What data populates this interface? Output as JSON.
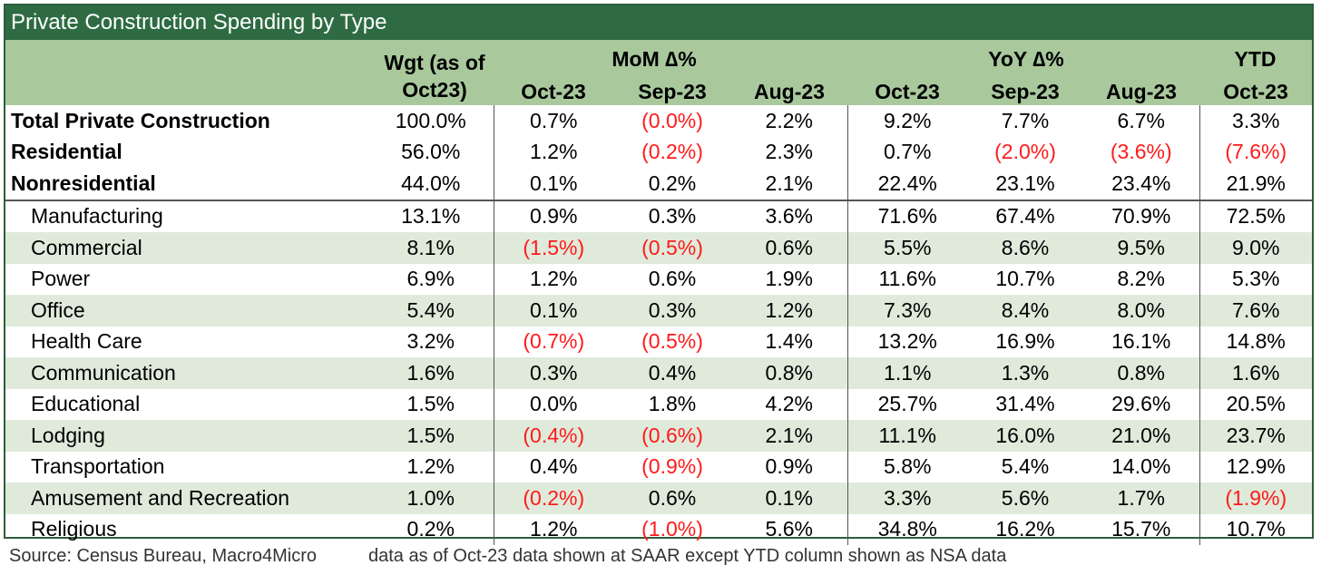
{
  "title": "Private Construction Spending by Type",
  "headers": {
    "wgt_line1": "Wgt (as of",
    "wgt_line2": "Oct23)",
    "mom_group": "MoM ∆%",
    "yoy_group": "YoY ∆%",
    "ytd_group": "YTD",
    "cols": [
      "Oct-23",
      "Sep-23",
      "Aug-23",
      "Oct-23",
      "Sep-23",
      "Aug-23",
      "Oct-23"
    ]
  },
  "rows": [
    {
      "label": "Total Private Construction",
      "cells": [
        "100.0%",
        "0.7%",
        "(0.0%)",
        "2.2%",
        "9.2%",
        "7.7%",
        "6.7%",
        "3.3%"
      ]
    },
    {
      "label": "Residential",
      "cells": [
        "56.0%",
        "1.2%",
        "(0.2%)",
        "2.3%",
        "0.7%",
        "(2.0%)",
        "(3.6%)",
        "(7.6%)"
      ]
    },
    {
      "label": "Nonresidential",
      "cells": [
        "44.0%",
        "0.1%",
        "0.2%",
        "2.1%",
        "22.4%",
        "23.1%",
        "23.4%",
        "21.9%"
      ]
    },
    {
      "label": "Manufacturing",
      "cells": [
        "13.1%",
        "0.9%",
        "0.3%",
        "3.6%",
        "71.6%",
        "67.4%",
        "70.9%",
        "72.5%"
      ]
    },
    {
      "label": "Commercial",
      "cells": [
        "8.1%",
        "(1.5%)",
        "(0.5%)",
        "0.6%",
        "5.5%",
        "8.6%",
        "9.5%",
        "9.0%"
      ]
    },
    {
      "label": "Power",
      "cells": [
        "6.9%",
        "1.2%",
        "0.6%",
        "1.9%",
        "11.6%",
        "10.7%",
        "8.2%",
        "5.3%"
      ]
    },
    {
      "label": "Office",
      "cells": [
        "5.4%",
        "0.1%",
        "0.3%",
        "1.2%",
        "7.3%",
        "8.4%",
        "8.0%",
        "7.6%"
      ]
    },
    {
      "label": "Health Care",
      "cells": [
        "3.2%",
        "(0.7%)",
        "(0.5%)",
        "1.4%",
        "13.2%",
        "16.9%",
        "16.1%",
        "14.8%"
      ]
    },
    {
      "label": "Communication",
      "cells": [
        "1.6%",
        "0.3%",
        "0.4%",
        "0.8%",
        "1.1%",
        "1.3%",
        "0.8%",
        "1.6%"
      ]
    },
    {
      "label": "Educational",
      "cells": [
        "1.5%",
        "0.0%",
        "1.8%",
        "4.2%",
        "25.7%",
        "31.4%",
        "29.6%",
        "20.5%"
      ]
    },
    {
      "label": "Lodging",
      "cells": [
        "1.5%",
        "(0.4%)",
        "(0.6%)",
        "2.1%",
        "11.1%",
        "16.0%",
        "21.0%",
        "23.7%"
      ]
    },
    {
      "label": "Transportation",
      "cells": [
        "1.2%",
        "0.4%",
        "(0.9%)",
        "0.9%",
        "5.8%",
        "5.4%",
        "14.0%",
        "12.9%"
      ]
    },
    {
      "label": "Amusement and Recreation",
      "cells": [
        "1.0%",
        "(0.2%)",
        "0.6%",
        "0.1%",
        "3.3%",
        "5.6%",
        "1.7%",
        "(1.9%)"
      ]
    },
    {
      "label": "Religious",
      "cells": [
        "0.2%",
        "1.2%",
        "(1.0%)",
        "5.6%",
        "34.8%",
        "16.2%",
        "15.7%",
        "10.7%"
      ]
    }
  ],
  "footer": {
    "source": "Source: Census Bureau, Macro4Micro",
    "note": "data as of Oct-23 data shown at SAAR except YTD column shown as NSA data"
  },
  "colors": {
    "title_bg": "#2e6b43",
    "header_bg": "#a9c99d",
    "shade_bg": "#dfeadb",
    "negative": "#ff1a1a"
  }
}
